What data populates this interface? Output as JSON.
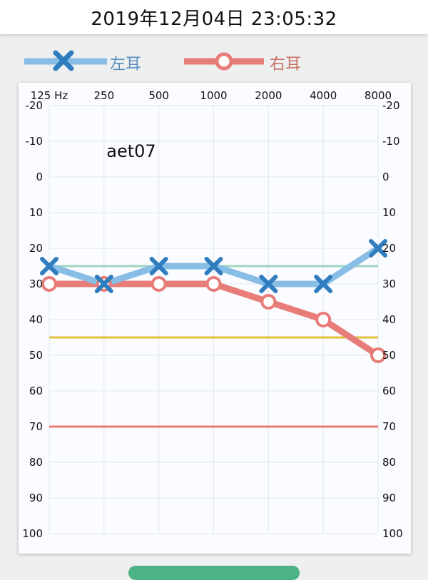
{
  "header": {
    "datetime": "2019年12月04日 23:05:32"
  },
  "legend": {
    "left_ear": {
      "label": "左耳",
      "color": "#88bde6",
      "marker_color": "#2f7dbf",
      "label_color": "#5b8fc0"
    },
    "right_ear": {
      "label": "右耳",
      "color": "#e77c78",
      "label_color": "#c87066"
    }
  },
  "chart_data": {
    "type": "line",
    "annotation": "aet07",
    "categories": [
      "125 Hz",
      "250",
      "500",
      "1000",
      "2000",
      "4000",
      "8000"
    ],
    "y_ticks": [
      -20,
      -10,
      0,
      10,
      20,
      30,
      40,
      50,
      60,
      70,
      80,
      90,
      100
    ],
    "ylim": [
      -20,
      100
    ],
    "y_inverted": true,
    "grid": true,
    "legend_position": "top",
    "series": [
      {
        "name": "左耳",
        "marker": "x",
        "color": "#88bde6",
        "marker_color": "#2f7dbf",
        "values": [
          25,
          30,
          25,
          25,
          30,
          30,
          20
        ]
      },
      {
        "name": "右耳",
        "marker": "circle",
        "color": "#e77c78",
        "values": [
          30,
          30,
          30,
          30,
          35,
          40,
          50
        ]
      }
    ],
    "reference_lines": [
      {
        "value": 25,
        "color": "#9fd4c0"
      },
      {
        "value": 45,
        "color": "#e2c040"
      },
      {
        "value": 70,
        "color": "#e57c73"
      }
    ]
  }
}
